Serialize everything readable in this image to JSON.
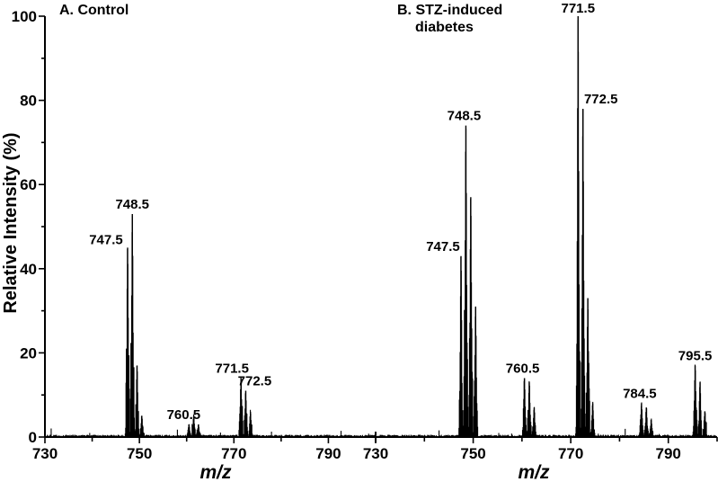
{
  "chart_data": [
    {
      "type": "line",
      "title": "A. Control",
      "xlabel": "m/z",
      "ylabel": "Relative Intensity (%)",
      "xlim": [
        730,
        800
      ],
      "ylim": [
        0,
        100
      ],
      "xticks": [
        730,
        750,
        770,
        790
      ],
      "yticks": [
        0,
        20,
        40,
        60,
        80,
        100
      ],
      "grid": false,
      "peaks": [
        {
          "x": 747.5,
          "y": 45
        },
        {
          "x": 748.5,
          "y": 53
        },
        {
          "x": 749.5,
          "y": 17
        },
        {
          "x": 750.5,
          "y": 5
        },
        {
          "x": 760.5,
          "y": 3
        },
        {
          "x": 761.5,
          "y": 5
        },
        {
          "x": 762.5,
          "y": 3
        },
        {
          "x": 771.5,
          "y": 14
        },
        {
          "x": 772.5,
          "y": 11
        },
        {
          "x": 773.5,
          "y": 6
        }
      ],
      "annotations": [
        {
          "text": "747.5",
          "x": 747.5,
          "y": 45
        },
        {
          "text": "748.5",
          "x": 748.5,
          "y": 53
        },
        {
          "text": "760.5",
          "x": 760.5,
          "y": 3
        },
        {
          "text": "771.5",
          "x": 771.5,
          "y": 14
        },
        {
          "text": "772.5",
          "x": 772.5,
          "y": 11
        }
      ]
    },
    {
      "type": "line",
      "title": "B. STZ-induced diabetes",
      "title_lines": [
        "B. STZ-induced",
        "diabetes"
      ],
      "xlabel": "m/z",
      "xlim": [
        730,
        800
      ],
      "ylim": [
        0,
        100
      ],
      "xticks": [
        730,
        750,
        770,
        790
      ],
      "grid": false,
      "peaks": [
        {
          "x": 747.5,
          "y": 43
        },
        {
          "x": 748.5,
          "y": 74
        },
        {
          "x": 749.5,
          "y": 57
        },
        {
          "x": 750.5,
          "y": 31
        },
        {
          "x": 760.5,
          "y": 14
        },
        {
          "x": 761.5,
          "y": 13
        },
        {
          "x": 762.5,
          "y": 7
        },
        {
          "x": 771.5,
          "y": 100
        },
        {
          "x": 772.5,
          "y": 78
        },
        {
          "x": 773.5,
          "y": 33
        },
        {
          "x": 774.5,
          "y": 8
        },
        {
          "x": 784.5,
          "y": 8
        },
        {
          "x": 785.5,
          "y": 7
        },
        {
          "x": 786.5,
          "y": 4
        },
        {
          "x": 795.5,
          "y": 17
        },
        {
          "x": 796.5,
          "y": 13
        },
        {
          "x": 797.5,
          "y": 6
        }
      ],
      "annotations": [
        {
          "text": "747.5",
          "x": 747.5,
          "y": 43
        },
        {
          "text": "748.5",
          "x": 748.5,
          "y": 74
        },
        {
          "text": "760.5",
          "x": 760.5,
          "y": 14
        },
        {
          "text": "771.5",
          "x": 771.5,
          "y": 100
        },
        {
          "text": "772.5",
          "x": 772.5,
          "y": 78
        },
        {
          "text": "784.5",
          "x": 784.5,
          "y": 8
        },
        {
          "text": "795.5",
          "x": 795.5,
          "y": 17
        }
      ]
    }
  ]
}
